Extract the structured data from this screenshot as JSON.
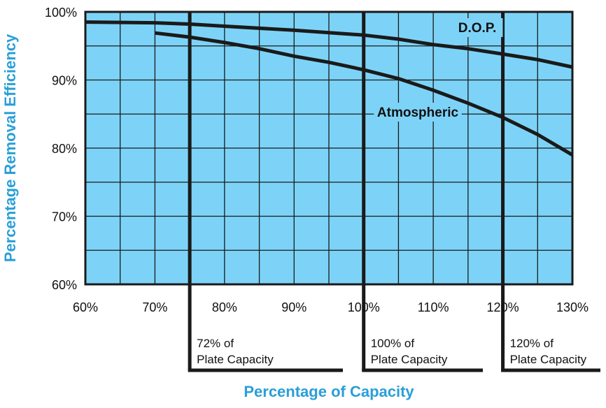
{
  "chart_data": {
    "type": "line",
    "title": "",
    "xlabel": "Percentage of Capacity",
    "ylabel": "Percentage Removal Efficiency",
    "xlim": [
      60,
      130
    ],
    "ylim": [
      60,
      100
    ],
    "x_ticks": [
      60,
      70,
      80,
      90,
      100,
      110,
      120,
      130
    ],
    "x_tick_labels": [
      "60%",
      "70%",
      "80%",
      "90%",
      "100%",
      "110%",
      "120%",
      "130%"
    ],
    "y_ticks": [
      60,
      70,
      80,
      90,
      100
    ],
    "y_tick_labels": [
      "60%",
      "70%",
      "80%",
      "90%",
      "100%"
    ],
    "grid": true,
    "colors": {
      "plot_bg": "#7dd3f7",
      "grid": "#1a1a1a",
      "axis_title": "#2a9fd8",
      "line": "#1a1a1a"
    },
    "series": [
      {
        "name": "D.O.P.",
        "x": [
          60,
          70,
          75,
          80,
          90,
          100,
          105,
          110,
          115,
          120,
          125,
          130
        ],
        "y": [
          98.5,
          98.4,
          98.2,
          97.9,
          97.3,
          96.6,
          96.0,
          95.2,
          94.6,
          93.8,
          93.0,
          91.9
        ]
      },
      {
        "name": "Atmospheric",
        "x": [
          70,
          75,
          80,
          85,
          90,
          95,
          100,
          105,
          110,
          115,
          120,
          125,
          130
        ],
        "y": [
          96.9,
          96.3,
          95.5,
          94.6,
          93.5,
          92.6,
          91.5,
          90.2,
          88.5,
          86.6,
          84.5,
          82.0,
          79.0
        ]
      }
    ],
    "annotations": [
      {
        "x": 75,
        "line1": "72% of",
        "line2": "Plate Capacity"
      },
      {
        "x": 100,
        "line1": "100% of",
        "line2": "Plate Capacity"
      },
      {
        "x": 120,
        "line1": "120% of",
        "line2": "Plate Capacity"
      }
    ]
  }
}
